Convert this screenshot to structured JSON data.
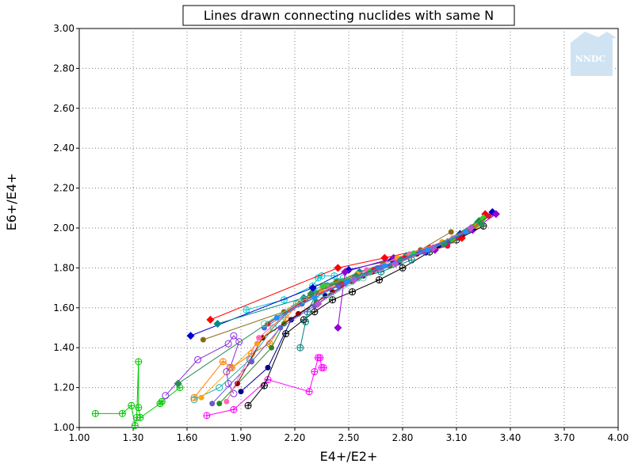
{
  "chart_data": {
    "type": "scatter",
    "title": "Lines drawn connecting nuclides with same N",
    "xlabel": "E4+/E2+",
    "ylabel": "E6+/E4+",
    "xlim": [
      1.0,
      4.0
    ],
    "ylim": [
      1.0,
      3.0
    ],
    "x_ticks": [
      "1.00",
      "1.30",
      "1.60",
      "1.90",
      "2.20",
      "2.50",
      "2.80",
      "3.10",
      "3.40",
      "3.70",
      "4.00"
    ],
    "y_ticks": [
      "1.00",
      "1.20",
      "1.40",
      "1.60",
      "1.80",
      "2.00",
      "2.20",
      "2.40",
      "2.60",
      "2.80",
      "3.00"
    ],
    "grid": true,
    "legend": "none",
    "logo_text": "NNDC",
    "series": [
      {
        "color": "#00c800",
        "marker": "open-circle-plus",
        "points": [
          [
            1.09,
            1.07
          ],
          [
            1.24,
            1.07
          ],
          [
            1.29,
            1.11
          ],
          [
            1.31,
            1.01
          ],
          [
            1.32,
            1.05
          ],
          [
            1.33,
            1.33
          ],
          [
            1.33,
            1.1
          ],
          [
            1.34,
            1.05
          ],
          [
            1.45,
            1.12
          ],
          [
            1.46,
            1.13
          ],
          [
            1.56,
            1.2
          ]
        ]
      },
      {
        "color": "#ff00ff",
        "marker": "open-circle-plus",
        "points": [
          [
            1.71,
            1.06
          ],
          [
            1.86,
            1.09
          ],
          [
            2.05,
            1.24
          ],
          [
            2.28,
            1.18
          ],
          [
            2.31,
            1.28
          ],
          [
            2.33,
            1.35
          ],
          [
            2.34,
            1.35
          ],
          [
            2.35,
            1.3
          ],
          [
            2.36,
            1.3
          ]
        ]
      },
      {
        "color": "#8a2be2",
        "marker": "open-circle",
        "points": [
          [
            1.48,
            1.16
          ],
          [
            1.66,
            1.34
          ],
          [
            1.83,
            1.42
          ],
          [
            1.86,
            1.46
          ],
          [
            1.89,
            1.43
          ],
          [
            1.84,
            1.3
          ],
          [
            1.82,
            1.28
          ],
          [
            1.83,
            1.22
          ],
          [
            1.86,
            1.17
          ]
        ]
      },
      {
        "color": "#ff7f00",
        "marker": "open-circle-plus",
        "points": [
          [
            1.64,
            1.15
          ],
          [
            1.8,
            1.33
          ],
          [
            1.85,
            1.3
          ],
          [
            1.96,
            1.37
          ],
          [
            2.06,
            1.42
          ],
          [
            2.15,
            1.55
          ],
          [
            2.22,
            1.62
          ],
          [
            2.29,
            1.66
          ],
          [
            2.36,
            1.71
          ]
        ]
      },
      {
        "color": "#000000",
        "marker": "open-circle-plus",
        "points": [
          [
            1.94,
            1.11
          ],
          [
            2.03,
            1.21
          ],
          [
            2.15,
            1.47
          ],
          [
            2.25,
            1.54
          ],
          [
            2.31,
            1.58
          ],
          [
            2.41,
            1.64
          ],
          [
            2.52,
            1.68
          ],
          [
            2.67,
            1.74
          ],
          [
            2.8,
            1.8
          ],
          [
            2.95,
            1.88
          ],
          [
            3.1,
            1.94
          ],
          [
            3.25,
            2.01
          ]
        ]
      },
      {
        "color": "#008080",
        "marker": "open-circle-plus",
        "points": [
          [
            2.23,
            1.4
          ],
          [
            2.26,
            1.53
          ],
          [
            2.27,
            1.58
          ],
          [
            2.32,
            1.67
          ],
          [
            2.38,
            1.71
          ],
          [
            2.44,
            1.73
          ],
          [
            2.55,
            1.75
          ],
          [
            2.68,
            1.78
          ],
          [
            2.85,
            1.84
          ]
        ]
      },
      {
        "color": "#00ced1",
        "marker": "open-circle-plus",
        "points": [
          [
            1.93,
            1.59
          ],
          [
            2.14,
            1.64
          ],
          [
            2.3,
            1.71
          ],
          [
            2.33,
            1.75
          ],
          [
            2.35,
            1.76
          ],
          [
            2.42,
            1.76
          ]
        ]
      },
      {
        "color": "#20b2aa",
        "marker": "open-circle",
        "points": [
          [
            1.64,
            1.14
          ],
          [
            1.78,
            1.2
          ],
          [
            1.95,
            1.34
          ],
          [
            2.08,
            1.5
          ],
          [
            2.21,
            1.62
          ],
          [
            2.33,
            1.7
          ],
          [
            2.47,
            1.75
          ]
        ]
      },
      {
        "color": "#ff0000",
        "marker": "filled-diamond",
        "points": [
          [
            1.73,
            1.54
          ],
          [
            2.44,
            1.8
          ],
          [
            2.7,
            1.85
          ],
          [
            2.95,
            1.9
          ],
          [
            3.13,
            1.95
          ],
          [
            3.26,
            2.07
          ]
        ]
      },
      {
        "color": "#0000cd",
        "marker": "filled-diamond",
        "points": [
          [
            1.62,
            1.46
          ],
          [
            2.3,
            1.7
          ],
          [
            2.5,
            1.79
          ],
          [
            2.74,
            1.84
          ],
          [
            2.93,
            1.88
          ],
          [
            3.12,
            1.97
          ],
          [
            3.3,
            2.08
          ]
        ]
      },
      {
        "color": "#008b8b",
        "marker": "filled-diamond",
        "points": [
          [
            1.77,
            1.52
          ],
          [
            2.25,
            1.65
          ],
          [
            2.56,
            1.78
          ],
          [
            2.82,
            1.86
          ],
          [
            3.05,
            1.93
          ],
          [
            3.22,
            2.03
          ]
        ]
      },
      {
        "color": "#9400d3",
        "marker": "filled-diamond",
        "points": [
          [
            2.44,
            1.5
          ],
          [
            2.48,
            1.78
          ],
          [
            2.75,
            1.85
          ],
          [
            2.98,
            1.89
          ],
          [
            3.19,
            1.99
          ],
          [
            3.32,
            2.07
          ]
        ]
      },
      {
        "color": "#8b6914",
        "marker": "filled-circle",
        "points": [
          [
            1.69,
            1.44
          ],
          [
            2.14,
            1.58
          ],
          [
            2.43,
            1.73
          ],
          [
            2.69,
            1.82
          ],
          [
            2.9,
            1.89
          ],
          [
            3.07,
            1.98
          ]
        ]
      },
      {
        "color": "#00008b",
        "marker": "filled-circle",
        "points": [
          [
            1.9,
            1.18
          ],
          [
            2.05,
            1.3
          ],
          [
            2.18,
            1.54
          ],
          [
            2.37,
            1.66
          ],
          [
            2.58,
            1.76
          ],
          [
            2.78,
            1.83
          ],
          [
            3.0,
            1.91
          ],
          [
            3.2,
            2.0
          ]
        ]
      },
      {
        "color": "#228b22",
        "marker": "filled-circle",
        "points": [
          [
            1.78,
            1.12
          ],
          [
            2.07,
            1.4
          ],
          [
            2.14,
            1.52
          ],
          [
            2.32,
            1.63
          ],
          [
            2.52,
            1.73
          ],
          [
            2.73,
            1.81
          ],
          [
            2.96,
            1.89
          ],
          [
            3.23,
            2.04
          ]
        ]
      },
      {
        "color": "#8b0000",
        "marker": "filled-circle",
        "points": [
          [
            1.88,
            1.22
          ],
          [
            2.02,
            1.45
          ],
          [
            2.22,
            1.57
          ],
          [
            2.41,
            1.68
          ],
          [
            2.63,
            1.78
          ],
          [
            2.88,
            1.87
          ],
          [
            3.14,
            1.97
          ]
        ]
      },
      {
        "color": "#6a5acd",
        "marker": "filled-circle",
        "points": [
          [
            1.74,
            1.12
          ],
          [
            1.96,
            1.33
          ],
          [
            2.12,
            1.5
          ],
          [
            2.31,
            1.61
          ],
          [
            2.48,
            1.72
          ],
          [
            2.68,
            1.8
          ],
          [
            2.92,
            1.88
          ]
        ]
      },
      {
        "color": "#ffa500",
        "marker": "filled-circle",
        "points": [
          [
            1.68,
            1.15
          ],
          [
            1.99,
            1.42
          ],
          [
            2.17,
            1.59
          ],
          [
            2.35,
            1.68
          ],
          [
            2.55,
            1.77
          ],
          [
            2.77,
            1.85
          ],
          [
            3.02,
            1.93
          ],
          [
            3.21,
            2.01
          ]
        ]
      },
      {
        "color": "#ff69b4",
        "marker": "filled-circle",
        "points": [
          [
            1.82,
            1.13
          ],
          [
            2.0,
            1.45
          ],
          [
            2.19,
            1.6
          ],
          [
            2.39,
            1.7
          ],
          [
            2.6,
            1.79
          ],
          [
            2.84,
            1.87
          ],
          [
            3.08,
            1.95
          ]
        ]
      },
      {
        "color": "#32cd32",
        "marker": "filled-diamond",
        "points": [
          [
            2.36,
            1.71
          ],
          [
            2.62,
            1.78
          ],
          [
            2.86,
            1.87
          ],
          [
            3.08,
            1.94
          ],
          [
            3.25,
            2.05
          ]
        ]
      },
      {
        "color": "#4169e1",
        "marker": "filled-circle",
        "points": [
          [
            2.03,
            1.5
          ],
          [
            2.24,
            1.62
          ],
          [
            2.44,
            1.71
          ],
          [
            2.66,
            1.8
          ],
          [
            2.9,
            1.88
          ],
          [
            3.17,
            1.99
          ]
        ]
      },
      {
        "color": "#dc143c",
        "marker": "filled-circle",
        "points": [
          [
            2.05,
            1.52
          ],
          [
            2.26,
            1.64
          ],
          [
            2.46,
            1.72
          ],
          [
            2.64,
            1.79
          ],
          [
            2.81,
            1.85
          ],
          [
            3.05,
            1.91
          ],
          [
            3.28,
            2.06
          ]
        ]
      },
      {
        "color": "#2e8b57",
        "marker": "filled-diamond",
        "points": [
          [
            1.55,
            1.22
          ],
          [
            2.29,
            1.67
          ],
          [
            2.54,
            1.76
          ],
          [
            2.79,
            1.84
          ],
          [
            3.03,
            1.92
          ],
          [
            3.24,
            2.02
          ]
        ]
      },
      {
        "color": "#66cdaa",
        "marker": "open-circle",
        "points": [
          [
            2.03,
            1.52
          ],
          [
            2.25,
            1.64
          ],
          [
            2.4,
            1.66
          ],
          [
            2.58,
            1.75
          ]
        ]
      },
      {
        "color": "#ba55d3",
        "marker": "filled-diamond",
        "points": [
          [
            2.33,
            1.62
          ],
          [
            2.53,
            1.74
          ],
          [
            2.76,
            1.82
          ],
          [
            2.97,
            1.9
          ],
          [
            3.18,
            2.0
          ]
        ]
      },
      {
        "color": "#1e90ff",
        "marker": "filled-circle",
        "points": [
          [
            2.1,
            1.55
          ],
          [
            2.31,
            1.65
          ],
          [
            2.49,
            1.73
          ],
          [
            2.7,
            1.81
          ],
          [
            2.94,
            1.89
          ],
          [
            3.15,
            1.98
          ]
        ]
      }
    ]
  }
}
